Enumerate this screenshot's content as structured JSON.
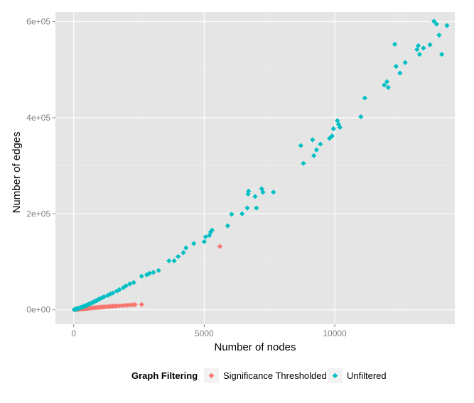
{
  "chart_data": {
    "type": "scatter",
    "title": "",
    "xlabel": "Number of nodes",
    "ylabel": "Number of edges",
    "xlim": [
      -700,
      14600
    ],
    "ylim": [
      -30000,
      620000
    ],
    "x_ticks": [
      0,
      5000,
      10000
    ],
    "x_tick_labels": [
      "0",
      "5000",
      "10000"
    ],
    "y_ticks": [
      0,
      200000,
      400000,
      600000
    ],
    "y_tick_labels": [
      "0e+00",
      "2e+05",
      "4e+05",
      "6e+05"
    ],
    "grid": true,
    "legend": {
      "title": "Graph Filtering",
      "position": "bottom"
    },
    "series": [
      {
        "name": "Significance Thresholded",
        "color": "#f8766d",
        "points": [
          [
            20,
            300
          ],
          [
            40,
            400
          ],
          [
            60,
            600
          ],
          [
            80,
            700
          ],
          [
            100,
            900
          ],
          [
            130,
            1000
          ],
          [
            160,
            1200
          ],
          [
            190,
            1400
          ],
          [
            220,
            1500
          ],
          [
            250,
            1700
          ],
          [
            280,
            1800
          ],
          [
            310,
            2000
          ],
          [
            340,
            2200
          ],
          [
            370,
            2300
          ],
          [
            400,
            2500
          ],
          [
            430,
            2600
          ],
          [
            460,
            2800
          ],
          [
            490,
            2900
          ],
          [
            520,
            3100
          ],
          [
            550,
            3200
          ],
          [
            600,
            3400
          ],
          [
            650,
            3600
          ],
          [
            700,
            3900
          ],
          [
            750,
            4100
          ],
          [
            800,
            4300
          ],
          [
            850,
            4600
          ],
          [
            900,
            4800
          ],
          [
            950,
            5000
          ],
          [
            1000,
            5300
          ],
          [
            1050,
            5500
          ],
          [
            1100,
            5800
          ],
          [
            1150,
            6000
          ],
          [
            1200,
            6300
          ],
          [
            1280,
            6600
          ],
          [
            1350,
            6900
          ],
          [
            1420,
            7200
          ],
          [
            1500,
            7500
          ],
          [
            1580,
            7800
          ],
          [
            1650,
            8100
          ],
          [
            1750,
            8400
          ],
          [
            1850,
            8800
          ],
          [
            1950,
            9200
          ],
          [
            2050,
            9600
          ],
          [
            2150,
            10000
          ],
          [
            2250,
            10400
          ],
          [
            2350,
            10800
          ],
          [
            2600,
            11000
          ],
          [
            5600,
            132000
          ]
        ]
      },
      {
        "name": "Unfiltered",
        "color": "#00bfc4",
        "points": [
          [
            20,
            500
          ],
          [
            50,
            1000
          ],
          [
            80,
            1500
          ],
          [
            110,
            2000
          ],
          [
            140,
            2500
          ],
          [
            170,
            3000
          ],
          [
            200,
            3500
          ],
          [
            240,
            4200
          ],
          [
            280,
            5000
          ],
          [
            320,
            5800
          ],
          [
            360,
            6600
          ],
          [
            400,
            7500
          ],
          [
            440,
            8300
          ],
          [
            480,
            9200
          ],
          [
            520,
            10200
          ],
          [
            560,
            11200
          ],
          [
            600,
            12200
          ],
          [
            650,
            13400
          ],
          [
            700,
            14700
          ],
          [
            750,
            16000
          ],
          [
            800,
            17300
          ],
          [
            850,
            18600
          ],
          [
            900,
            20000
          ],
          [
            950,
            21500
          ],
          [
            1000,
            23000
          ],
          [
            1080,
            25000
          ],
          [
            1160,
            27000
          ],
          [
            1300,
            30000
          ],
          [
            1400,
            33000
          ],
          [
            1500,
            35000
          ],
          [
            1650,
            39000
          ],
          [
            1750,
            42000
          ],
          [
            1900,
            46000
          ],
          [
            2000,
            50000
          ],
          [
            2150,
            54000
          ],
          [
            2300,
            57000
          ],
          [
            2600,
            70000
          ],
          [
            2800,
            73000
          ],
          [
            2900,
            76000
          ],
          [
            3050,
            78000
          ],
          [
            3250,
            82000
          ],
          [
            3650,
            102000
          ],
          [
            3850,
            102000
          ],
          [
            4000,
            111000
          ],
          [
            4200,
            119000
          ],
          [
            4300,
            129000
          ],
          [
            4600,
            138000
          ],
          [
            5000,
            142000
          ],
          [
            5050,
            152000
          ],
          [
            5200,
            155000
          ],
          [
            5250,
            162000
          ],
          [
            5300,
            166000
          ],
          [
            5900,
            175000
          ],
          [
            6050,
            199000
          ],
          [
            6450,
            200000
          ],
          [
            6650,
            212000
          ],
          [
            6680,
            241000
          ],
          [
            6700,
            247000
          ],
          [
            6950,
            236000
          ],
          [
            7000,
            212000
          ],
          [
            7200,
            252000
          ],
          [
            7250,
            245000
          ],
          [
            7650,
            245000
          ],
          [
            8700,
            342000
          ],
          [
            8800,
            305000
          ],
          [
            9150,
            354000
          ],
          [
            9200,
            321000
          ],
          [
            9300,
            333000
          ],
          [
            9450,
            345000
          ],
          [
            9800,
            357000
          ],
          [
            9900,
            362000
          ],
          [
            9950,
            377000
          ],
          [
            10100,
            394000
          ],
          [
            10150,
            386000
          ],
          [
            10200,
            380000
          ],
          [
            11000,
            402000
          ],
          [
            11150,
            441000
          ],
          [
            11900,
            468000
          ],
          [
            12000,
            475000
          ],
          [
            12050,
            463000
          ],
          [
            12300,
            553000
          ],
          [
            12350,
            507000
          ],
          [
            12500,
            493000
          ],
          [
            12700,
            515000
          ],
          [
            13150,
            542000
          ],
          [
            13200,
            550000
          ],
          [
            13250,
            532000
          ],
          [
            13400,
            545000
          ],
          [
            13650,
            552000
          ],
          [
            13800,
            601000
          ],
          [
            13900,
            595000
          ],
          [
            14000,
            572000
          ],
          [
            14100,
            532000
          ],
          [
            14300,
            592000
          ]
        ]
      }
    ]
  }
}
